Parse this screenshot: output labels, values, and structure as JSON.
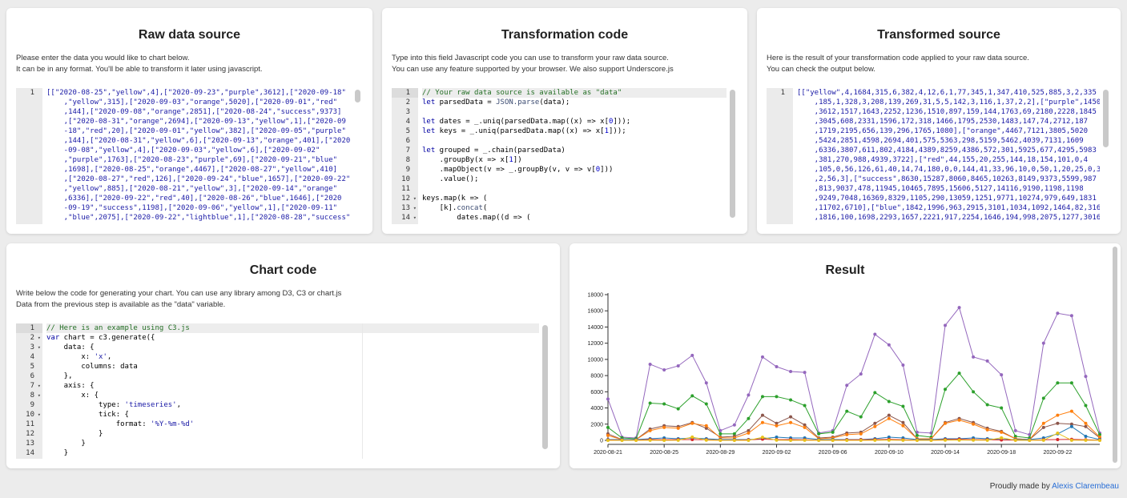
{
  "panels": {
    "raw": {
      "title": "Raw data source",
      "desc1": "Please enter the data you would like to chart below.",
      "desc2": "It can be in any format. You'll be able to transform it later using javascript.",
      "line_numbers": [
        "1"
      ],
      "code_text": "[[\"2020-08-25\",\"yellow\",4],[\"2020-09-23\",\"purple\",3612],[\"2020-09-18\"\n    ,\"yellow\",315],[\"2020-09-03\",\"orange\",5020],[\"2020-09-01\",\"red\"\n    ,144],[\"2020-09-08\",\"orange\",2851],[\"2020-08-24\",\"success\",9373]\n    ,[\"2020-08-31\",\"orange\",2694],[\"2020-09-13\",\"yellow\",1],[\"2020-09\n    -18\",\"red\",20],[\"2020-09-01\",\"yellow\",382],[\"2020-09-05\",\"purple\"\n    ,144],[\"2020-08-31\",\"yellow\",6],[\"2020-09-13\",\"orange\",401],[\"2020\n    -09-08\",\"yellow\",4],[\"2020-09-03\",\"yellow\",6],[\"2020-09-02\"\n    ,\"purple\",1763],[\"2020-08-23\",\"purple\",69],[\"2020-09-21\",\"blue\"\n    ,1698],[\"2020-08-25\",\"orange\",4467],[\"2020-08-27\",\"yellow\",410]\n    ,[\"2020-08-27\",\"red\",126],[\"2020-09-24\",\"blue\",1657],[\"2020-09-22\"\n    ,\"yellow\",885],[\"2020-08-21\",\"yellow\",3],[\"2020-09-14\",\"orange\"\n    ,6336],[\"2020-09-22\",\"red\",40],[\"2020-08-26\",\"blue\",1646],[\"2020\n    -09-19\",\"success\",1198],[\"2020-09-06\",\"yellow\",1],[\"2020-09-11\"\n    ,\"blue\",2075],[\"2020-09-22\",\"lightblue\",1],[\"2020-08-28\",\"success\""
    },
    "transform": {
      "title": "Transformation code",
      "desc1": "Type into this field Javascript code you can use to transform your raw data source.",
      "desc2": "You can use any feature supported by your browser. We also support Underscore.js",
      "lines": [
        {
          "n": "1",
          "t": "// Your raw data source is available as \"data\""
        },
        {
          "n": "2",
          "t": "let parsedData = JSON.parse(data);"
        },
        {
          "n": "3",
          "t": ""
        },
        {
          "n": "4",
          "t": "let dates = _.uniq(parsedData.map((x) => x[0]));"
        },
        {
          "n": "5",
          "t": "let keys = _.uniq(parsedData.map((x) => x[1]));"
        },
        {
          "n": "6",
          "t": ""
        },
        {
          "n": "7",
          "t": "let grouped = _.chain(parsedData)"
        },
        {
          "n": "8",
          "t": "    .groupBy(x => x[1])"
        },
        {
          "n": "9",
          "t": "    .mapObject(v => _.groupBy(v, v => v[0]))"
        },
        {
          "n": "10",
          "t": "    .value();"
        },
        {
          "n": "11",
          "t": ""
        },
        {
          "n": "12",
          "t": "keys.map(k => ("
        },
        {
          "n": "13",
          "t": "    [k].concat("
        },
        {
          "n": "14",
          "t": "        dates.map((d => ("
        }
      ]
    },
    "output": {
      "title": "Transformed source",
      "desc1": "Here is the result of your transformation code applied to your raw data source.",
      "desc2": "You can check the output below.",
      "line_numbers": [
        "1"
      ],
      "code_text": "[[\"yellow\",4,1684,315,6,382,4,12,6,1,77,345,1,347,410,525,885,3,2,335\n    ,185,1,328,3,208,139,269,31,5,5,142,3,116,1,37,2,2],[\"purple\",1450\n    ,3612,1517,1643,2252,1236,1510,897,159,144,1763,69,2180,2228,1845\n    ,3045,608,2331,1596,172,318,1466,1795,2530,1483,147,74,2712,187\n    ,1719,2195,656,139,296,1765,1080],[\"orange\",4467,7121,3805,5020\n    ,5424,2851,4598,2694,401,575,5363,298,5159,5462,4039,7131,1609\n    ,6336,3807,611,802,4184,4389,8259,4386,572,301,5925,677,4295,5983\n    ,381,270,988,4939,3722],[\"red\",44,155,20,255,144,18,154,101,0,4\n    ,105,0,56,126,61,40,14,74,180,0,0,144,41,33,96,10,0,50,1,20,25,0,3\n    ,2,56,3],[\"success\",8630,15287,8060,8465,10263,8149,9373,5599,987\n    ,813,9037,478,11945,10465,7895,15606,5127,14116,9190,1198,1198\n    ,9249,7048,16369,8329,1105,290,13059,1251,9771,10274,979,649,1831\n    ,11702,6710],[\"blue\",1842,1996,963,2915,3101,1034,1092,1464,82,316\n    ,1816,100,1698,2293,1657,2221,917,2254,1646,194,998,2075,1277,3016"
    },
    "chart": {
      "title": "Chart code",
      "desc1": "Write below the code for generating your chart. You can use any library among D3, C3 or chart.js",
      "desc2": "Data from the previous step is available as the \"data\" variable.",
      "lines": [
        {
          "n": "1",
          "t": "// Here is an example using C3.js"
        },
        {
          "n": "2",
          "t": "var chart = c3.generate({"
        },
        {
          "n": "3",
          "t": "    data: {"
        },
        {
          "n": "4",
          "t": "        x: 'x',"
        },
        {
          "n": "5",
          "t": "        columns: data"
        },
        {
          "n": "6",
          "t": "    },"
        },
        {
          "n": "7",
          "t": "    axis: {"
        },
        {
          "n": "8",
          "t": "        x: {"
        },
        {
          "n": "9",
          "t": "            type: 'timeseries',"
        },
        {
          "n": "10",
          "t": "            tick: {"
        },
        {
          "n": "11",
          "t": "                format: '%Y-%m-%d'"
        },
        {
          "n": "12",
          "t": "            }"
        },
        {
          "n": "13",
          "t": "        }"
        },
        {
          "n": "14",
          "t": "    }"
        }
      ]
    },
    "result": {
      "title": "Result"
    }
  },
  "footer": {
    "prefix": "Proudly made by ",
    "author": "Alexis Clarembeau"
  },
  "chart_data": {
    "type": "line",
    "x_tick_labels": [
      "2020-08-21",
      "2020-08-25",
      "2020-08-29",
      "2020-09-02",
      "2020-09-06",
      "2020-09-10",
      "2020-09-14",
      "2020-09-18",
      "2020-09-22"
    ],
    "y_tick_labels": [
      "0",
      "2000",
      "4000",
      "6000",
      "8000",
      "10000",
      "12000",
      "14000",
      "16000",
      "18000"
    ],
    "ylim": [
      0,
      18000
    ],
    "xlim": [
      "2020-08-21",
      "2020-09-25"
    ],
    "x": [
      "2020-08-21",
      "2020-08-22",
      "2020-08-23",
      "2020-08-24",
      "2020-08-25",
      "2020-08-26",
      "2020-08-27",
      "2020-08-28",
      "2020-08-29",
      "2020-08-30",
      "2020-08-31",
      "2020-09-01",
      "2020-09-02",
      "2020-09-03",
      "2020-09-04",
      "2020-09-05",
      "2020-09-06",
      "2020-09-07",
      "2020-09-08",
      "2020-09-09",
      "2020-09-10",
      "2020-09-11",
      "2020-09-12",
      "2020-09-13",
      "2020-09-14",
      "2020-09-15",
      "2020-09-16",
      "2020-09-17",
      "2020-09-18",
      "2020-09-19",
      "2020-09-20",
      "2020-09-21",
      "2020-09-22",
      "2020-09-23",
      "2020-09-24",
      "2020-09-25"
    ],
    "series": [
      {
        "color": "#9467bd",
        "values": [
          5100,
          400,
          300,
          9400,
          8700,
          9200,
          10500,
          7100,
          1200,
          1900,
          5600,
          10300,
          9100,
          8500,
          8400,
          900,
          1200,
          6800,
          8200,
          13100,
          11800,
          9300,
          1000,
          900,
          14200,
          16400,
          10300,
          9800,
          8100,
          1200,
          700,
          12000,
          15700,
          15400,
          7900,
          900
        ]
      },
      {
        "color": "#2ca02c",
        "values": [
          1600,
          300,
          200,
          4600,
          4500,
          3900,
          5500,
          4500,
          800,
          800,
          2700,
          5400,
          5400,
          5000,
          4300,
          800,
          1000,
          3600,
          2900,
          5900,
          4800,
          4200,
          600,
          400,
          6300,
          8300,
          6000,
          4400,
          4000,
          500,
          300,
          5200,
          7100,
          7100,
          4300,
          700
        ]
      },
      {
        "color": "#8c564b",
        "values": [
          800,
          100,
          100,
          1400,
          1800,
          1700,
          2200,
          1500,
          400,
          500,
          1200,
          3100,
          2100,
          2900,
          1900,
          300,
          400,
          900,
          1000,
          2100,
          3100,
          2200,
          200,
          200,
          2200,
          2700,
          2200,
          1500,
          1100,
          200,
          100,
          1600,
          2100,
          2000,
          1700,
          300
        ]
      },
      {
        "color": "#ff7f0e",
        "values": [
          600,
          100,
          100,
          1200,
          1600,
          1500,
          2100,
          1800,
          300,
          300,
          900,
          2200,
          1800,
          2200,
          1600,
          200,
          300,
          700,
          800,
          1700,
          2700,
          1800,
          200,
          200,
          2100,
          2500,
          2000,
          1300,
          1000,
          200,
          100,
          2100,
          3100,
          3600,
          2100,
          400
        ]
      },
      {
        "color": "#1f77b4",
        "values": [
          100,
          100,
          100,
          200,
          300,
          200,
          300,
          200,
          100,
          100,
          100,
          200,
          400,
          300,
          300,
          100,
          100,
          100,
          100,
          200,
          400,
          300,
          100,
          100,
          200,
          200,
          300,
          200,
          100,
          100,
          100,
          300,
          800,
          1700,
          500,
          100
        ]
      },
      {
        "color": "#d62728",
        "values": [
          50,
          20,
          20,
          100,
          80,
          90,
          100,
          80,
          20,
          20,
          60,
          144,
          90,
          100,
          80,
          20,
          20,
          60,
          70,
          90,
          120,
          80,
          20,
          20,
          100,
          130,
          90,
          70,
          50,
          20,
          10,
          80,
          100,
          120,
          80,
          20
        ]
      },
      {
        "color": "#e8c21a",
        "values": [
          4,
          3,
          3,
          10,
          4,
          10,
          410,
          20,
          6,
          6,
          6,
          382,
          20,
          6,
          10,
          1,
          1,
          5,
          4,
          10,
          20,
          10,
          1,
          1,
          20,
          30,
          20,
          10,
          315,
          10,
          5,
          10,
          885,
          10,
          10,
          3
        ]
      }
    ]
  }
}
